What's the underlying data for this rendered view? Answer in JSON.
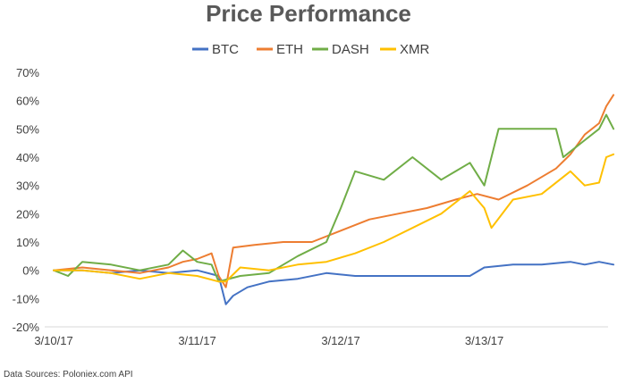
{
  "chart_data": {
    "type": "line",
    "title": "Price Performance",
    "xlabel": "",
    "ylabel": "",
    "x_ticks": [
      "3/10/17",
      "3/11/17",
      "3/12/17",
      "3/13/17"
    ],
    "x_range_days": [
      0,
      3.8
    ],
    "y_ticks": [
      "70%",
      "60%",
      "50%",
      "40%",
      "30%",
      "20%",
      "10%",
      "0%",
      "-10%",
      "-20%"
    ],
    "ylim": [
      -20,
      70
    ],
    "y_unit": "%",
    "grid": false,
    "legend_position": "top",
    "series": [
      {
        "name": "BTC",
        "color": "#4472C4",
        "points": [
          [
            0,
            0
          ],
          [
            0.2,
            0
          ],
          [
            0.4,
            -1
          ],
          [
            0.6,
            0
          ],
          [
            0.8,
            -1
          ],
          [
            1.0,
            0
          ],
          [
            1.15,
            -2
          ],
          [
            1.2,
            -12
          ],
          [
            1.25,
            -9
          ],
          [
            1.35,
            -6
          ],
          [
            1.5,
            -4
          ],
          [
            1.7,
            -3
          ],
          [
            1.9,
            -1
          ],
          [
            2.1,
            -2
          ],
          [
            2.3,
            -2
          ],
          [
            2.5,
            -2
          ],
          [
            2.7,
            -2
          ],
          [
            2.9,
            -2
          ],
          [
            3.0,
            1
          ],
          [
            3.2,
            2
          ],
          [
            3.4,
            2
          ],
          [
            3.6,
            3
          ],
          [
            3.7,
            2
          ],
          [
            3.8,
            3
          ],
          [
            3.9,
            2
          ]
        ]
      },
      {
        "name": "ETH",
        "color": "#ED7D31",
        "points": [
          [
            0,
            0
          ],
          [
            0.2,
            1
          ],
          [
            0.4,
            0
          ],
          [
            0.6,
            -1
          ],
          [
            0.8,
            1
          ],
          [
            0.9,
            3
          ],
          [
            1.0,
            4
          ],
          [
            1.1,
            6
          ],
          [
            1.15,
            -2
          ],
          [
            1.2,
            -6
          ],
          [
            1.25,
            8
          ],
          [
            1.4,
            9
          ],
          [
            1.6,
            10
          ],
          [
            1.8,
            10
          ],
          [
            2.0,
            14
          ],
          [
            2.2,
            18
          ],
          [
            2.4,
            20
          ],
          [
            2.6,
            22
          ],
          [
            2.8,
            25
          ],
          [
            2.95,
            27
          ],
          [
            3.1,
            25
          ],
          [
            3.3,
            30
          ],
          [
            3.5,
            36
          ],
          [
            3.6,
            41
          ],
          [
            3.7,
            48
          ],
          [
            3.8,
            52
          ],
          [
            3.85,
            58
          ],
          [
            3.9,
            62
          ]
        ]
      },
      {
        "name": "DASH",
        "color": "#70AD47",
        "points": [
          [
            0,
            0
          ],
          [
            0.1,
            -2
          ],
          [
            0.2,
            3
          ],
          [
            0.4,
            2
          ],
          [
            0.6,
            0
          ],
          [
            0.8,
            2
          ],
          [
            0.9,
            7
          ],
          [
            1.0,
            3
          ],
          [
            1.1,
            2
          ],
          [
            1.15,
            -4
          ],
          [
            1.3,
            -2
          ],
          [
            1.5,
            -1
          ],
          [
            1.7,
            5
          ],
          [
            1.9,
            10
          ],
          [
            2.0,
            22
          ],
          [
            2.1,
            35
          ],
          [
            2.3,
            32
          ],
          [
            2.5,
            40
          ],
          [
            2.7,
            32
          ],
          [
            2.9,
            38
          ],
          [
            3.0,
            30
          ],
          [
            3.1,
            50
          ],
          [
            3.3,
            50
          ],
          [
            3.5,
            50
          ],
          [
            3.55,
            40
          ],
          [
            3.7,
            46
          ],
          [
            3.8,
            50
          ],
          [
            3.85,
            55
          ],
          [
            3.9,
            50
          ]
        ]
      },
      {
        "name": "XMR",
        "color": "#FFC000",
        "points": [
          [
            0,
            0
          ],
          [
            0.2,
            0
          ],
          [
            0.4,
            -1
          ],
          [
            0.6,
            -3
          ],
          [
            0.8,
            -1
          ],
          [
            1.0,
            -2
          ],
          [
            1.15,
            -4
          ],
          [
            1.2,
            -4
          ],
          [
            1.3,
            1
          ],
          [
            1.5,
            0
          ],
          [
            1.7,
            2
          ],
          [
            1.9,
            3
          ],
          [
            2.1,
            6
          ],
          [
            2.3,
            10
          ],
          [
            2.5,
            15
          ],
          [
            2.7,
            20
          ],
          [
            2.8,
            24
          ],
          [
            2.9,
            28
          ],
          [
            3.0,
            22
          ],
          [
            3.05,
            15
          ],
          [
            3.2,
            25
          ],
          [
            3.4,
            27
          ],
          [
            3.6,
            35
          ],
          [
            3.7,
            30
          ],
          [
            3.8,
            31
          ],
          [
            3.85,
            40
          ],
          [
            3.9,
            41
          ]
        ]
      }
    ],
    "source_note": "Data Sources: Poloniex.com API"
  }
}
